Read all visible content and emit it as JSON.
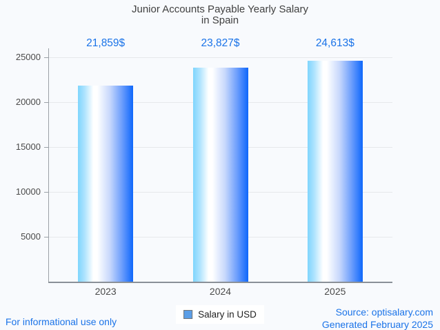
{
  "page": {
    "background": "#f8fafd",
    "footer_left": "For informational use only",
    "footer_right_line1": "Source: optisalary.com",
    "footer_right_line2": "Generated February 2025",
    "footer_color": "#1a73e8"
  },
  "chart_data": {
    "type": "bar",
    "title_line1": "Junior Accounts Payable Yearly Salary",
    "title_line2": "in Spain",
    "categories": [
      "2023",
      "2024",
      "2025"
    ],
    "values": [
      21859,
      23827,
      24613
    ],
    "value_labels": [
      "21,859$",
      "23,827$",
      "24,613$"
    ],
    "series_name": "Salary in USD",
    "ylabel": "",
    "xlabel": "",
    "ylim": [
      0,
      26000
    ],
    "yticks": [
      5000,
      10000,
      15000,
      20000,
      25000
    ],
    "grid": true,
    "legend_position": "bottom-center",
    "colors": {
      "value_label": "#1a73e8",
      "bar_gradient_left": "#7fd5fd",
      "bar_gradient_mid": "#ffffff",
      "bar_gradient_right": "#0e67fb",
      "legend_swatch": "#5b9ee7",
      "legend_swatch_border": "#757575",
      "axis_line": "#9aa0a6",
      "x_axis_line": "#8a9097",
      "gridline": "#e6e8eb",
      "title_color": "#3f3f3f",
      "tick_label_color": "#4a4a4a"
    }
  }
}
